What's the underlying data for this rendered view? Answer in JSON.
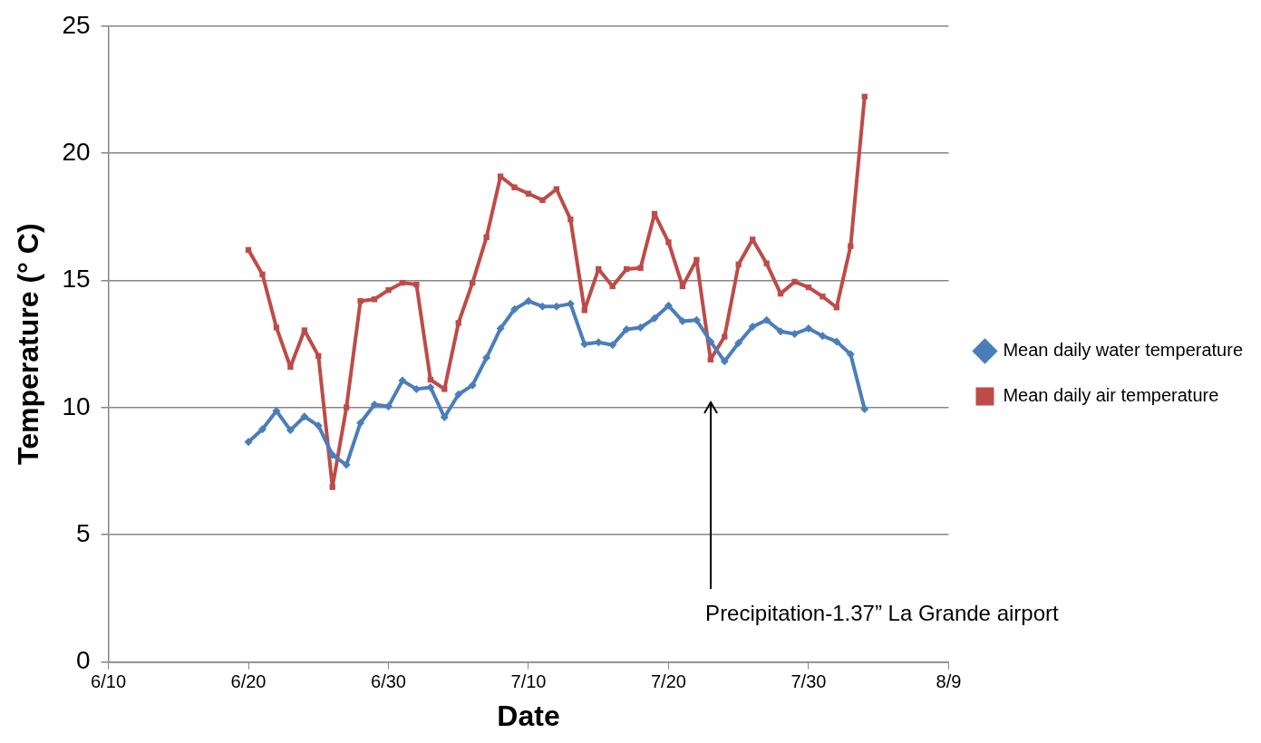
{
  "chart_data": {
    "type": "line",
    "xlabel": "Date",
    "ylabel": "Temperature (° C)",
    "x": [
      "--06-20",
      "--06-21",
      "--06-22",
      "--06-23",
      "--06-24",
      "--06-25",
      "--06-26",
      "--06-27",
      "--06-28",
      "--06-29",
      "--06-30",
      "--07-01",
      "--07-02",
      "--07-03",
      "--07-04",
      "--07-05",
      "--07-06",
      "--07-07",
      "--07-08",
      "--07-09",
      "--07-10",
      "--07-11",
      "--07-12",
      "--07-13",
      "--07-14",
      "--07-15",
      "--07-16",
      "--07-17",
      "--07-18",
      "--07-19",
      "--07-20",
      "--07-21",
      "--07-22",
      "--07-23",
      "--07-24",
      "--07-25",
      "--07-26",
      "--07-27",
      "--07-28",
      "--07-29",
      "--07-30",
      "--07-31",
      "--08-01",
      "--08-02",
      "--08-03"
    ],
    "series": [
      {
        "name": "Mean daily water temperature",
        "color": "#4a7ebb",
        "marker": "diamond",
        "values": [
          8.65,
          9.15,
          9.87,
          9.11,
          9.65,
          9.29,
          8.14,
          7.75,
          9.4,
          10.12,
          10.05,
          11.06,
          10.73,
          10.8,
          9.62,
          10.52,
          10.88,
          11.96,
          13.11,
          13.87,
          14.19,
          13.98,
          13.98,
          14.08,
          12.5,
          12.57,
          12.46,
          13.08,
          13.15,
          13.51,
          14.01,
          13.4,
          13.44,
          12.6,
          11.82,
          12.54,
          13.18,
          13.44,
          13.0,
          12.9,
          13.11,
          12.82,
          12.6,
          12.1,
          9.94
        ]
      },
      {
        "name": "Mean daily air temperature",
        "color": "#be4b48",
        "marker": "square",
        "values": [
          16.2,
          15.24,
          13.15,
          11.6,
          13.04,
          12.03,
          6.88,
          10.01,
          14.19,
          14.26,
          14.62,
          14.91,
          14.84,
          11.1,
          10.73,
          13.33,
          14.91,
          16.7,
          19.09,
          18.66,
          18.41,
          18.16,
          18.59,
          17.4,
          13.83,
          15.45,
          14.77,
          15.45,
          15.49,
          17.62,
          16.5,
          14.77,
          15.81,
          11.89,
          12.79,
          15.63,
          16.61,
          15.67,
          14.48,
          14.95,
          14.73,
          14.37,
          13.94,
          16.35,
          22.23
        ]
      }
    ],
    "xlim": [
      "--06-10",
      "--08-09"
    ],
    "xticks": [
      {
        "value": "--06-10",
        "label": "6/10"
      },
      {
        "value": "--06-20",
        "label": "6/20"
      },
      {
        "value": "--06-30",
        "label": "6/30"
      },
      {
        "value": "--07-10",
        "label": "7/10"
      },
      {
        "value": "--07-20",
        "label": "7/20"
      },
      {
        "value": "--07-30",
        "label": "7/30"
      },
      {
        "value": "--08-09",
        "label": "8/9"
      }
    ],
    "ylim": [
      0,
      25
    ],
    "yticks": [
      0,
      5,
      10,
      15,
      20,
      25
    ],
    "grid": "y",
    "legend": "right",
    "line_style": "solid",
    "annotations": [
      "Precipitation-1.37” La Grande airport"
    ]
  }
}
